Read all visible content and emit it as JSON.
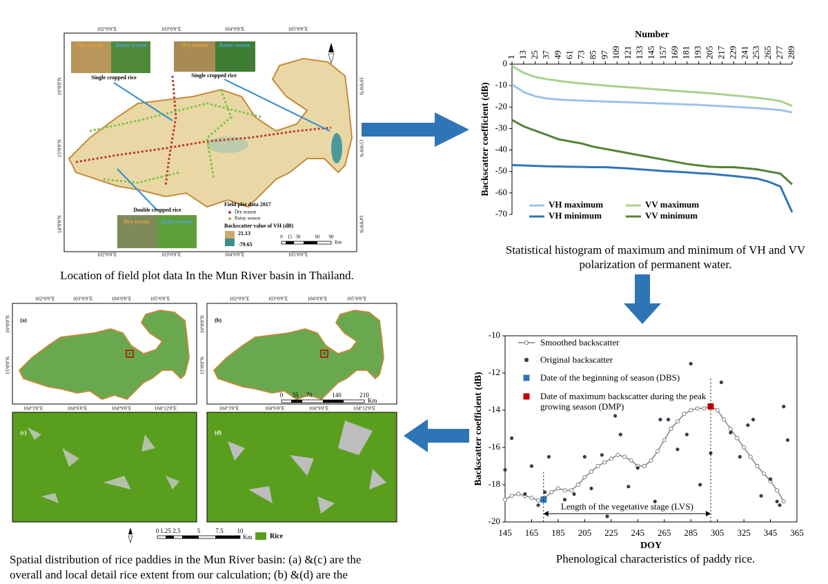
{
  "chart_data": [
    {
      "type": "line",
      "xlabel": "Number",
      "ylabel": "Backscatter coefficient (dB)",
      "x": [
        1,
        13,
        25,
        37,
        49,
        61,
        73,
        85,
        97,
        109,
        121,
        133,
        145,
        157,
        169,
        181,
        193,
        205,
        217,
        229,
        241,
        253,
        265,
        277,
        289
      ],
      "xlim": [
        1,
        289
      ],
      "xticks": [
        1,
        13,
        25,
        37,
        49,
        61,
        73,
        85,
        97,
        109,
        121,
        133,
        145,
        157,
        169,
        181,
        193,
        205,
        217,
        229,
        241,
        253,
        265,
        277,
        289
      ],
      "xaxis_position": "top",
      "ylim": [
        -70,
        0
      ],
      "yticks": [
        0,
        -10,
        -20,
        -30,
        -40,
        -50,
        -60,
        -70
      ],
      "series": [
        {
          "name": "VH maximum",
          "color": "#9dc3e6",
          "values": [
            -9.5,
            -13,
            -15,
            -16,
            -16.5,
            -16.8,
            -17,
            -17.2,
            -17.4,
            -17.6,
            -17.8,
            -18,
            -18.2,
            -18.4,
            -18.6,
            -18.8,
            -19,
            -19.3,
            -19.6,
            -19.9,
            -20.2,
            -20.5,
            -20.9,
            -21.4,
            -22.5
          ]
        },
        {
          "name": "VV maximum",
          "color": "#a9d18e",
          "values": [
            -1,
            -4,
            -6,
            -7,
            -7.8,
            -8.5,
            -9,
            -9.5,
            -10,
            -10.4,
            -10.8,
            -11.2,
            -11.6,
            -12,
            -12.4,
            -12.8,
            -13.2,
            -13.6,
            -14.1,
            -14.6,
            -15.1,
            -15.7,
            -16.4,
            -17.2,
            -19.5
          ]
        },
        {
          "name": "VH minimum",
          "color": "#2e75b6",
          "values": [
            -47,
            -47.2,
            -47.4,
            -47.6,
            -47.7,
            -47.8,
            -47.9,
            -48,
            -48,
            -48.3,
            -48.6,
            -49,
            -49.4,
            -49.8,
            -50.1,
            -50.4,
            -50.8,
            -51.1,
            -51.6,
            -52.1,
            -52.7,
            -53.3,
            -54.8,
            -57,
            -69
          ]
        },
        {
          "name": "VV minimum",
          "color": "#548235",
          "values": [
            -26,
            -29,
            -31,
            -33,
            -35,
            -36,
            -37,
            -38.5,
            -39.5,
            -40.5,
            -41.5,
            -42.5,
            -43.5,
            -44.5,
            -45.5,
            -46.5,
            -47.2,
            -47.8,
            -48,
            -48,
            -48.5,
            -49,
            -50,
            -51,
            -56
          ]
        }
      ]
    },
    {
      "type": "line",
      "xlabel": "DOY",
      "ylabel": "Backscatter coefficient (dB)",
      "xlim": [
        145,
        365
      ],
      "xticks": [
        145,
        165,
        185,
        205,
        225,
        245,
        265,
        285,
        305,
        325,
        345,
        365
      ],
      "ylim": [
        -20,
        -10
      ],
      "yticks": [
        -10,
        -12,
        -14,
        -16,
        -18,
        -20
      ],
      "annotation": "Length of the vegetative stage (LVS)",
      "series": [
        {
          "name": "Smoothed backscatter",
          "color": "#808080",
          "marker": "circle-open",
          "line": true,
          "x": [
            145,
            150,
            155,
            160,
            165,
            170,
            175,
            180,
            185,
            190,
            195,
            200,
            205,
            210,
            215,
            220,
            225,
            230,
            235,
            240,
            245,
            250,
            255,
            260,
            265,
            270,
            275,
            280,
            285,
            290,
            295,
            300,
            305,
            310,
            315,
            320,
            325,
            330,
            335,
            340,
            345,
            350,
            355
          ],
          "values": [
            -18.8,
            -18.6,
            -18.5,
            -18.6,
            -18.7,
            -18.85,
            -18.7,
            -18.4,
            -18.2,
            -18.3,
            -18.3,
            -18,
            -17.6,
            -17.3,
            -17,
            -16.8,
            -16.6,
            -16.4,
            -16.5,
            -16.7,
            -17,
            -17,
            -16.7,
            -16.2,
            -15.6,
            -15,
            -14.6,
            -14.2,
            -14,
            -13.9,
            -13.9,
            -13.8,
            -14,
            -14.5,
            -15,
            -15.5,
            -16,
            -16.5,
            -17,
            -17.4,
            -17.8,
            -18.3,
            -18.9
          ]
        },
        {
          "name": "Original backscatter",
          "color": "#333f50",
          "marker": "circle",
          "x": [
            145,
            150,
            160,
            165,
            170,
            175,
            178,
            190,
            197,
            205,
            210,
            218,
            222,
            228,
            232,
            238,
            245,
            258,
            262,
            268,
            275,
            282,
            285,
            292,
            300,
            308,
            315,
            322,
            328,
            332,
            338,
            345,
            350,
            352,
            355,
            358
          ],
          "values": [
            -17.2,
            -15.5,
            -18.5,
            -17,
            -19.1,
            -18.4,
            -16.5,
            -18.8,
            -18.5,
            -16.5,
            -18.2,
            -16.4,
            -19.7,
            -14.3,
            -15.3,
            -18.1,
            -17.1,
            -18.9,
            -14.5,
            -14.5,
            -16.1,
            -15.3,
            -11.5,
            -18,
            -16.3,
            -12.5,
            -15.2,
            -16.5,
            -14.8,
            -14.5,
            -18.6,
            -17.7,
            -18.9,
            -19.1,
            -13.8,
            -15.6
          ]
        },
        {
          "name": "Date of the beginning of season (DBS)",
          "color": "#2e75b6",
          "marker": "square",
          "x": [
            174
          ],
          "values": [
            -18.8
          ]
        },
        {
          "name": "Date of maximum backscatter during the peak growing season (DMP)",
          "color": "#c00000",
          "marker": "square",
          "x": [
            300
          ],
          "values": [
            -13.8
          ]
        }
      ]
    }
  ],
  "overview_map": {
    "lon_labels": [
      "102°0'0\"E",
      "103°0'0\"E",
      "104°0'0\"E",
      "105°0'0\"E"
    ],
    "lat_labels": [
      "16°0'0\"N",
      "15°0'0\"N",
      "14°0'0\"N"
    ],
    "season_dry": "Dry season",
    "season_rainy": "Rainy season",
    "single_rice": "Single cropped  rice",
    "double_rice": "Double cropped  rice",
    "legend_title": "Field plot data 2017",
    "legend_dry": "Dry season",
    "legend_rainy": "Rainy season",
    "vh_title": "Backscatter value of VH (dB)",
    "vh_high": "21.13",
    "vh_low": "-79.65",
    "scale": [
      "0",
      "15",
      "30",
      "60",
      "90"
    ],
    "scale_unit": "Km"
  },
  "rice_maps": {
    "panel_labels": [
      "(a)",
      "(b)",
      "(c)",
      "(d)"
    ],
    "box_labels": [
      "c",
      "d"
    ],
    "lon_labels": [
      "102°0'0\"E",
      "103°0'0\"E",
      "104°0'0\"E",
      "105°0'0\"E"
    ],
    "detail_lon_labels": [
      "104°3'0\"E",
      "104°6'0\"E",
      "104°9'0\"E",
      "104°12'0\"E"
    ],
    "lat_labels": [
      "16°0'0\"N",
      "15°0'0\"N"
    ],
    "scale": [
      "0",
      "35",
      "70",
      "140",
      "210"
    ],
    "scale_unit": "Km",
    "detail_scale": [
      "0",
      "1.25",
      "2.5",
      "5",
      "7.5",
      "10"
    ],
    "detail_scale_unit": "Km",
    "legend": "Rice"
  },
  "captions": {
    "map": "Location of field plot data In the Mun River basin in Thailand.",
    "histogram": [
      "Statistical histogram of maximum and minimum of VH and VV",
      "polarization  of permanent water."
    ],
    "phenology": "Phenological characteristics of paddy rice.",
    "rice": [
      "Spatial distribution of rice paddies in the Mun River basin: (a) &(c) are the",
      "overall and local detail rice extent from our calculation; (b) &(d) are the"
    ]
  }
}
